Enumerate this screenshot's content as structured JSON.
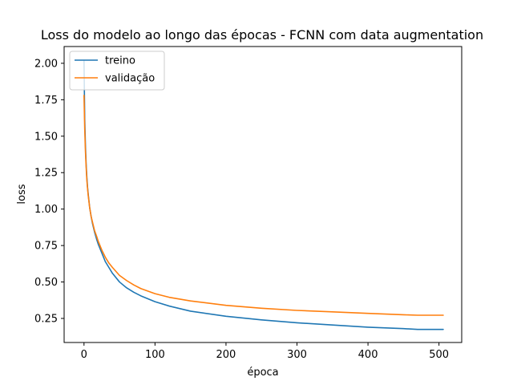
{
  "chart_data": {
    "type": "line",
    "title": "Loss do modelo ao longo das épocas - FCNN com data augmentation",
    "xlabel": "época",
    "ylabel": "loss",
    "xlim": [
      -28,
      532
    ],
    "ylim": [
      0.085,
      2.115
    ],
    "xticks": [
      0,
      100,
      200,
      300,
      400,
      500
    ],
    "yticks": [
      0.25,
      0.5,
      0.75,
      1.0,
      1.25,
      1.5,
      1.75,
      2.0
    ],
    "ytick_labels": [
      "0.25",
      "0.50",
      "0.75",
      "1.00",
      "1.25",
      "1.50",
      "1.75",
      "2.00"
    ],
    "legend_position": "top-left",
    "grid": false,
    "series": [
      {
        "name": "treino",
        "color": "#1f77b4",
        "x": [
          0,
          1,
          2,
          3,
          4,
          5,
          6,
          8,
          10,
          12,
          15,
          18,
          20,
          25,
          30,
          35,
          40,
          50,
          60,
          70,
          80,
          100,
          120,
          150,
          200,
          250,
          300,
          350,
          400,
          450,
          470,
          500,
          506
        ],
        "y": [
          2.02,
          1.62,
          1.44,
          1.31,
          1.22,
          1.15,
          1.1,
          1.01,
          0.95,
          0.9,
          0.84,
          0.79,
          0.76,
          0.7,
          0.64,
          0.6,
          0.56,
          0.5,
          0.46,
          0.43,
          0.405,
          0.365,
          0.335,
          0.3,
          0.265,
          0.24,
          0.22,
          0.205,
          0.19,
          0.18,
          0.175,
          0.175,
          0.175
        ]
      },
      {
        "name": "validação",
        "color": "#ff7f0e",
        "x": [
          0,
          1,
          2,
          3,
          4,
          5,
          6,
          8,
          10,
          12,
          15,
          18,
          20,
          25,
          30,
          35,
          40,
          50,
          60,
          70,
          80,
          100,
          120,
          150,
          200,
          250,
          300,
          350,
          400,
          450,
          470,
          500,
          506
        ],
        "y": [
          1.78,
          1.55,
          1.4,
          1.29,
          1.2,
          1.14,
          1.09,
          1.01,
          0.95,
          0.91,
          0.85,
          0.81,
          0.78,
          0.72,
          0.67,
          0.63,
          0.6,
          0.545,
          0.51,
          0.48,
          0.455,
          0.42,
          0.395,
          0.37,
          0.34,
          0.32,
          0.305,
          0.295,
          0.285,
          0.275,
          0.272,
          0.272,
          0.272
        ]
      }
    ]
  }
}
